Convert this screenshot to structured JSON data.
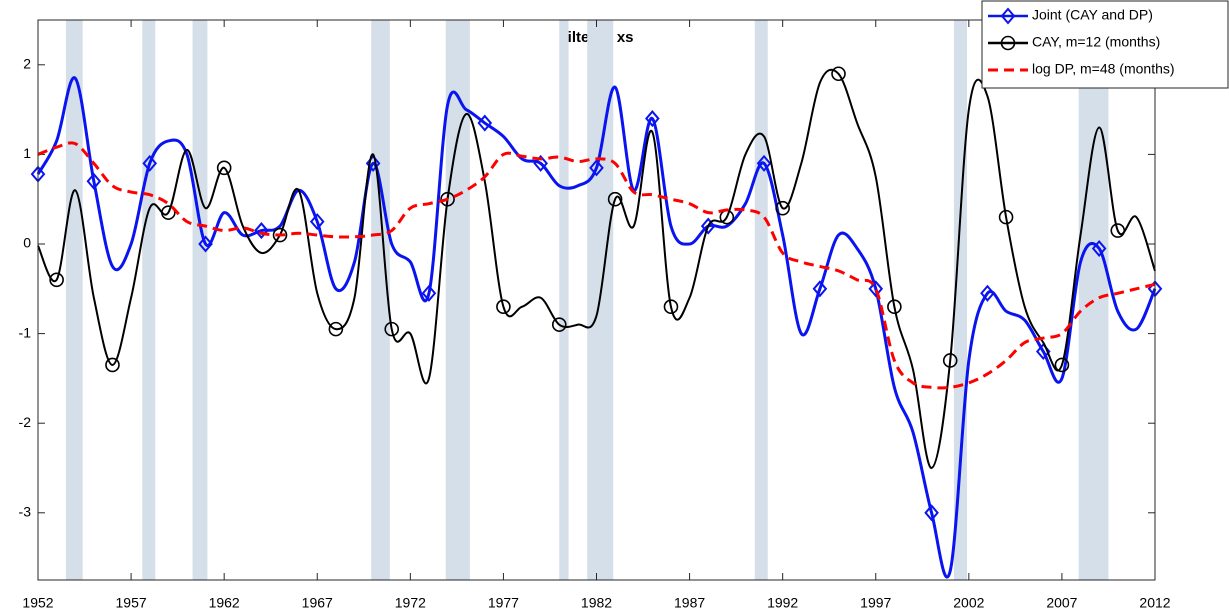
{
  "chart_data": {
    "type": "line",
    "title": "Filtered xs",
    "x": [
      1952,
      1953,
      1954,
      1955,
      1956,
      1957,
      1958,
      1959,
      1960,
      1961,
      1962,
      1963,
      1964,
      1965,
      1966,
      1967,
      1968,
      1969,
      1970,
      1971,
      1972,
      1973,
      1974,
      1975,
      1976,
      1977,
      1978,
      1979,
      1980,
      1981,
      1982,
      1983,
      1984,
      1985,
      1986,
      1987,
      1988,
      1989,
      1990,
      1991,
      1992,
      1993,
      1994,
      1995,
      1996,
      1997,
      1998,
      1999,
      2000,
      2001,
      2002,
      2003,
      2004,
      2005,
      2006,
      2007,
      2008,
      2009,
      2010,
      2011,
      2012
    ],
    "series": [
      {
        "name": "Joint (CAY and DP)",
        "color": "#0a14f0",
        "marker": "diamond",
        "dash": false,
        "values": [
          0.78,
          1.15,
          1.85,
          0.7,
          -0.25,
          0.0,
          0.9,
          1.15,
          1.0,
          0.0,
          0.35,
          0.1,
          0.15,
          0.2,
          0.6,
          0.25,
          -0.5,
          -0.2,
          0.9,
          0.0,
          -0.2,
          -0.55,
          1.55,
          1.5,
          1.35,
          1.2,
          0.95,
          0.9,
          0.65,
          0.65,
          0.85,
          1.75,
          0.6,
          1.4,
          0.2,
          0.0,
          0.2,
          0.2,
          0.45,
          0.9,
          0.1,
          -1.0,
          -0.5,
          0.1,
          -0.05,
          -0.5,
          -1.6,
          -2.1,
          -3.0,
          -3.65,
          -1.3,
          -0.55,
          -0.75,
          -0.85,
          -1.2,
          -1.5,
          -0.2,
          -0.05,
          -0.75,
          -0.95,
          -0.5
        ]
      },
      {
        "name": "CAY, m=12 (months)",
        "color": "#000000",
        "marker": "circle",
        "dash": false,
        "values": [
          -0.02,
          -0.4,
          0.6,
          -0.6,
          -1.35,
          -0.6,
          0.4,
          0.35,
          1.05,
          0.4,
          0.85,
          0.2,
          -0.1,
          0.1,
          0.6,
          -0.55,
          -0.95,
          -0.6,
          1.0,
          -0.95,
          -1.0,
          -1.5,
          0.5,
          1.45,
          0.7,
          -0.7,
          -0.7,
          -0.6,
          -0.9,
          -0.9,
          -0.8,
          0.5,
          0.2,
          1.25,
          -0.7,
          -0.6,
          0.2,
          0.3,
          1.0,
          1.2,
          0.4,
          0.9,
          1.8,
          1.9,
          1.35,
          0.75,
          -0.7,
          -1.4,
          -2.5,
          -1.3,
          1.5,
          1.65,
          0.3,
          -0.7,
          -1.1,
          -1.35,
          0.1,
          1.3,
          0.15,
          0.3,
          -0.3
        ]
      },
      {
        "name": "log DP, m=48 (months)",
        "color": "#ff0000",
        "marker": "none",
        "dash": true,
        "values": [
          1.0,
          1.08,
          1.12,
          0.9,
          0.65,
          0.58,
          0.55,
          0.45,
          0.25,
          0.2,
          0.15,
          0.18,
          0.12,
          0.1,
          0.12,
          0.1,
          0.08,
          0.08,
          0.1,
          0.15,
          0.4,
          0.45,
          0.5,
          0.6,
          0.75,
          1.0,
          0.98,
          0.95,
          0.97,
          0.92,
          0.95,
          0.9,
          0.58,
          0.55,
          0.5,
          0.45,
          0.35,
          0.38,
          0.38,
          0.3,
          -0.1,
          -0.2,
          -0.25,
          -0.3,
          -0.4,
          -0.5,
          -1.3,
          -1.55,
          -1.6,
          -1.6,
          -1.55,
          -1.45,
          -1.3,
          -1.1,
          -1.05,
          -1.0,
          -0.75,
          -0.6,
          -0.55,
          -0.5,
          -0.45
        ]
      }
    ],
    "recessions": [
      [
        1953.5,
        1954.4
      ],
      [
        1957.6,
        1958.3
      ],
      [
        1960.3,
        1961.1
      ],
      [
        1969.9,
        1970.9
      ],
      [
        1973.9,
        1975.2
      ],
      [
        1980.0,
        1980.5
      ],
      [
        1981.5,
        1982.9
      ],
      [
        1990.5,
        1991.2
      ],
      [
        2001.2,
        2001.9
      ],
      [
        2007.9,
        2009.5
      ]
    ],
    "recession_color": "#d5dfe9",
    "xlim": [
      1952,
      2012
    ],
    "xticks": [
      1952,
      1957,
      1962,
      1967,
      1972,
      1977,
      1982,
      1987,
      1992,
      1997,
      2002,
      2007,
      2012
    ],
    "ylim": [
      -3.75,
      2.5
    ],
    "yticks": [
      -3,
      -2,
      -1,
      0,
      1,
      2
    ],
    "grid": false,
    "legend": "top-right"
  }
}
